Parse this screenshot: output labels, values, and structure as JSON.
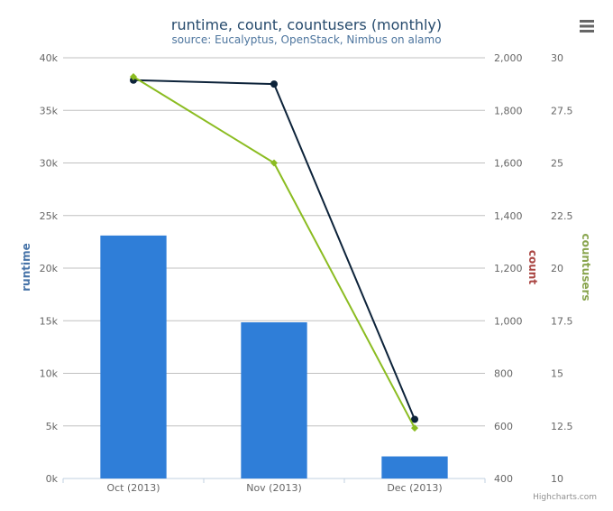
{
  "chart_data": {
    "type": "bar",
    "title": "runtime, count, countusers (monthly)",
    "subtitle": "source: Eucalyptus, OpenStack, Nimbus on alamo",
    "categories": [
      "Oct (2013)",
      "Nov (2013)",
      "Dec (2013)"
    ],
    "axes": [
      {
        "id": "runtime",
        "label": "runtime",
        "side": "left",
        "min": 0,
        "max": 40000,
        "ticks": [
          0,
          5000,
          10000,
          15000,
          20000,
          25000,
          30000,
          35000,
          40000
        ],
        "tick_labels": [
          "0k",
          "5k",
          "10k",
          "15k",
          "20k",
          "25k",
          "30k",
          "35k",
          "40k"
        ],
        "color": "#4572a7"
      },
      {
        "id": "count",
        "label": "count",
        "side": "right",
        "min": 400,
        "max": 2000,
        "ticks": [
          400,
          600,
          800,
          1000,
          1200,
          1400,
          1600,
          1800,
          2000
        ],
        "tick_labels": [
          "400",
          "600",
          "800",
          "1,000",
          "1,200",
          "1,400",
          "1,600",
          "1,800",
          "2,000"
        ],
        "color": "#aa4643"
      },
      {
        "id": "countusers",
        "label": "countusers",
        "side": "right",
        "min": 10,
        "max": 30,
        "ticks": [
          10,
          12.5,
          15,
          17.5,
          20,
          22.5,
          25,
          27.5,
          30
        ],
        "tick_labels": [
          "10",
          "12.5",
          "15",
          "17.5",
          "20",
          "22.5",
          "25",
          "27.5",
          "30"
        ],
        "color": "#89a54e"
      }
    ],
    "series": [
      {
        "name": "runtime",
        "type": "bar",
        "axis": "runtime",
        "color": "#2f7ed8",
        "values": [
          23100,
          14850,
          2100
        ]
      },
      {
        "name": "count",
        "type": "line",
        "axis": "count",
        "color": "#0d233a",
        "values": [
          1915,
          1900,
          625
        ]
      },
      {
        "name": "countusers",
        "type": "line",
        "axis": "countusers",
        "color": "#8bbc21",
        "values": [
          29.1,
          25.0,
          12.4
        ]
      }
    ],
    "grid": true,
    "legend": "none"
  },
  "credits": "Highcharts.com",
  "menu_icon": "hamburger-menu-icon"
}
